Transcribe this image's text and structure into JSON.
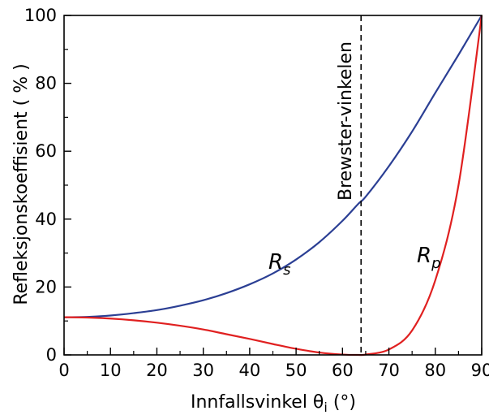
{
  "chart_data": {
    "type": "line",
    "xlabel": "Innfallsvinkel θ",
    "xlabel_sub": "i",
    "xlabel_unit": " (°)",
    "ylabel": "Refleksjonskoeffisient  ( % )",
    "xlim": [
      0,
      90
    ],
    "ylim": [
      0,
      100
    ],
    "xticks": [
      0,
      10,
      20,
      30,
      40,
      50,
      60,
      70,
      80,
      90
    ],
    "yticks": [
      0,
      20,
      40,
      60,
      80,
      100
    ],
    "grid": false,
    "series": [
      {
        "name": "R_s",
        "label_main": "R",
        "label_sub": "s",
        "color": "#2b3f94",
        "x": [
          0,
          5,
          10,
          15,
          20,
          25,
          30,
          35,
          40,
          45,
          50,
          55,
          60,
          63.4,
          65,
          70,
          75,
          80,
          85,
          90
        ],
        "y": [
          11.1,
          11.2,
          11.6,
          12.3,
          13.2,
          14.5,
          16.1,
          18.2,
          20.8,
          24.0,
          28.1,
          33.2,
          39.5,
          44.5,
          46.6,
          55.6,
          65.8,
          77.2,
          88.4,
          100
        ]
      },
      {
        "name": "R_p",
        "label_main": "R",
        "label_sub": "p",
        "color": "#e02020",
        "x": [
          0,
          5,
          10,
          15,
          20,
          25,
          30,
          35,
          40,
          45,
          50,
          55,
          60,
          63.4,
          65,
          70,
          75,
          80,
          85,
          90
        ],
        "y": [
          11.1,
          11.0,
          10.7,
          10.2,
          9.5,
          8.6,
          7.5,
          6.1,
          4.7,
          3.2,
          1.8,
          0.7,
          0.1,
          0.0,
          0.1,
          1.6,
          7.2,
          22.0,
          50.0,
          100
        ]
      }
    ],
    "annotation": {
      "text": "Brewster-vinkelen",
      "x": 64
    }
  }
}
